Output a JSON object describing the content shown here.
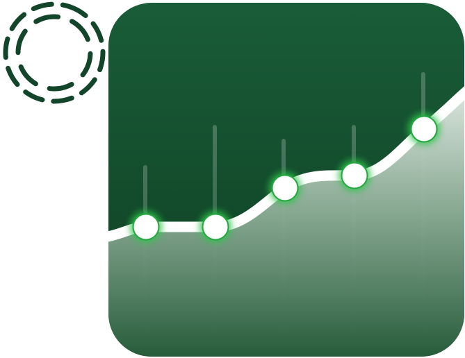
{
  "icons": {
    "ring": "dashed-ring-icon",
    "app": "line-chart-app-icon"
  },
  "colors": {
    "background": "#ffffff",
    "tile_top": "#1a5c38",
    "tile_bottom": "#0d3f22",
    "ring": "#13452a",
    "line": "#ffffff",
    "glow": "#2ec24a",
    "area_light": "#e4ece6",
    "area_dark": "#245a38"
  },
  "chart_data": {
    "type": "line",
    "points": 5,
    "trend": "rising",
    "values": [
      0.2,
      0.2,
      0.46,
      0.6,
      0.92
    ]
  }
}
